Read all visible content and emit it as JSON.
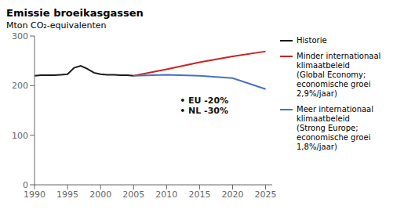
{
  "chart_data": {
    "type": "line",
    "title": "Emissie broeikasgassen",
    "y_label": "Mton CO₂-equivalenten",
    "x": [
      1990,
      1991,
      1992,
      1993,
      1994,
      1995,
      1996,
      1997,
      1998,
      1999,
      2000,
      2001,
      2002,
      2003,
      2004,
      2005,
      2010,
      2015,
      2020,
      2025
    ],
    "series": [
      {
        "name": "Historie",
        "color": "#1a1a1a",
        "values": [
          220,
          221,
          221,
          221,
          222,
          223,
          236,
          240,
          234,
          226,
          223,
          222,
          222,
          221,
          221,
          220,
          null,
          null,
          null,
          null
        ]
      },
      {
        "name": "Minder internationaal\nklimaatbeleid\n(Global Economy;\neconomische groei\n2,9%/jaar)",
        "color": "#cc2222",
        "values": [
          null,
          null,
          null,
          null,
          null,
          null,
          null,
          null,
          null,
          null,
          null,
          null,
          null,
          null,
          null,
          220,
          233,
          247,
          259,
          269
        ]
      },
      {
        "name": "Meer internationaal\nklimaatbeleid\n(Strong Europe;\neconomische groei\n1,8%/jaar)",
        "color": "#4472c4",
        "values": [
          null,
          null,
          null,
          null,
          null,
          null,
          null,
          null,
          null,
          null,
          null,
          null,
          null,
          null,
          null,
          220,
          222,
          220,
          215,
          193
        ]
      }
    ],
    "xlim": [
      1990,
      2026
    ],
    "xticks": [
      1990,
      1995,
      2000,
      2005,
      2010,
      2015,
      2020,
      2025
    ],
    "ylim": [
      0,
      300
    ],
    "yticks": [
      0,
      100,
      200,
      300
    ],
    "grid": false,
    "legend": "right",
    "annotations": [
      {
        "text": "• EU -20%\n• NL -30%",
        "x": 2012,
        "y": 158
      }
    ]
  }
}
